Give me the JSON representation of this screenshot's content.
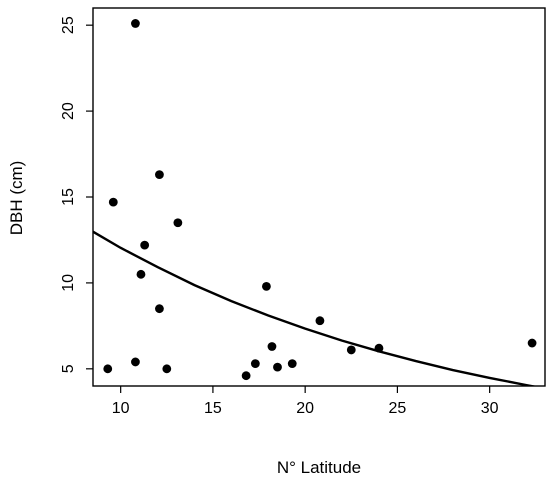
{
  "chart_data": {
    "type": "scatter",
    "title": "",
    "xlabel": "N° Latitude",
    "ylabel": "DBH (cm)",
    "xlim": [
      8.5,
      33
    ],
    "ylim": [
      4,
      26
    ],
    "grid": false,
    "x_ticks": [
      10,
      15,
      20,
      25,
      30
    ],
    "y_ticks": [
      5,
      10,
      15,
      20,
      25
    ],
    "x_tick_labels": [
      "10",
      "15",
      "20",
      "25",
      "30"
    ],
    "y_tick_labels": [
      "5",
      "10",
      "15",
      "20",
      "25"
    ],
    "points": [
      {
        "x": 9.3,
        "y": 5.0
      },
      {
        "x": 9.6,
        "y": 14.7
      },
      {
        "x": 10.8,
        "y": 25.1
      },
      {
        "x": 10.8,
        "y": 5.4
      },
      {
        "x": 11.1,
        "y": 10.5
      },
      {
        "x": 11.3,
        "y": 12.2
      },
      {
        "x": 12.1,
        "y": 16.3
      },
      {
        "x": 12.1,
        "y": 8.5
      },
      {
        "x": 12.5,
        "y": 5.0
      },
      {
        "x": 13.1,
        "y": 13.5
      },
      {
        "x": 16.8,
        "y": 4.6
      },
      {
        "x": 17.3,
        "y": 5.3
      },
      {
        "x": 17.9,
        "y": 9.8
      },
      {
        "x": 18.2,
        "y": 6.3
      },
      {
        "x": 18.5,
        "y": 5.1
      },
      {
        "x": 19.3,
        "y": 5.3
      },
      {
        "x": 20.8,
        "y": 7.8
      },
      {
        "x": 22.5,
        "y": 6.1
      },
      {
        "x": 24.0,
        "y": 6.2
      },
      {
        "x": 32.3,
        "y": 6.5
      }
    ],
    "fit_line": {
      "type": "exponential",
      "x": [
        8.5,
        10,
        12,
        14,
        16,
        18,
        20,
        22,
        24,
        26,
        28,
        30,
        32,
        33
      ],
      "y": [
        12.98,
        12.04,
        10.92,
        9.87,
        8.94,
        8.1,
        7.34,
        6.64,
        6.02,
        5.45,
        4.93,
        4.47,
        4.05,
        3.85
      ]
    },
    "colors": {
      "points": "#000000",
      "line": "#000000",
      "axes": "#000000"
    }
  }
}
